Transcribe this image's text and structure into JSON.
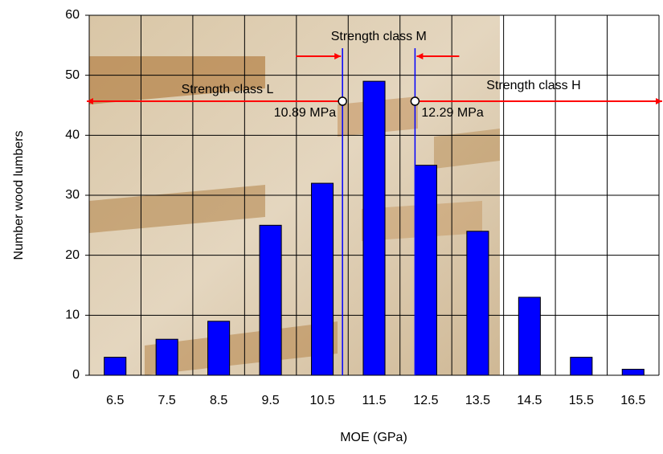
{
  "chart_data": {
    "type": "bar",
    "x_label": "MOE (GPa)",
    "y_label": "Number wood lumbers",
    "categories": [
      "6.5",
      "7.5",
      "8.5",
      "9.5",
      "10.5",
      "11.5",
      "12.5",
      "13.5",
      "14.5",
      "15.5",
      "16.5"
    ],
    "values": [
      3,
      6,
      9,
      25,
      32,
      49,
      35,
      24,
      13,
      3,
      1
    ],
    "color": "#0000ff",
    "ylim": [
      0,
      60
    ],
    "yticks": [
      0,
      10,
      20,
      30,
      40,
      50,
      60
    ],
    "grid": true,
    "thresholds": [
      {
        "value": 10.89,
        "label": "10.89 MPa"
      },
      {
        "value": 12.29,
        "label": "12.29 MPa"
      }
    ],
    "annotations": [
      "Strength class L",
      "Strength class M",
      "Strength class H"
    ]
  }
}
